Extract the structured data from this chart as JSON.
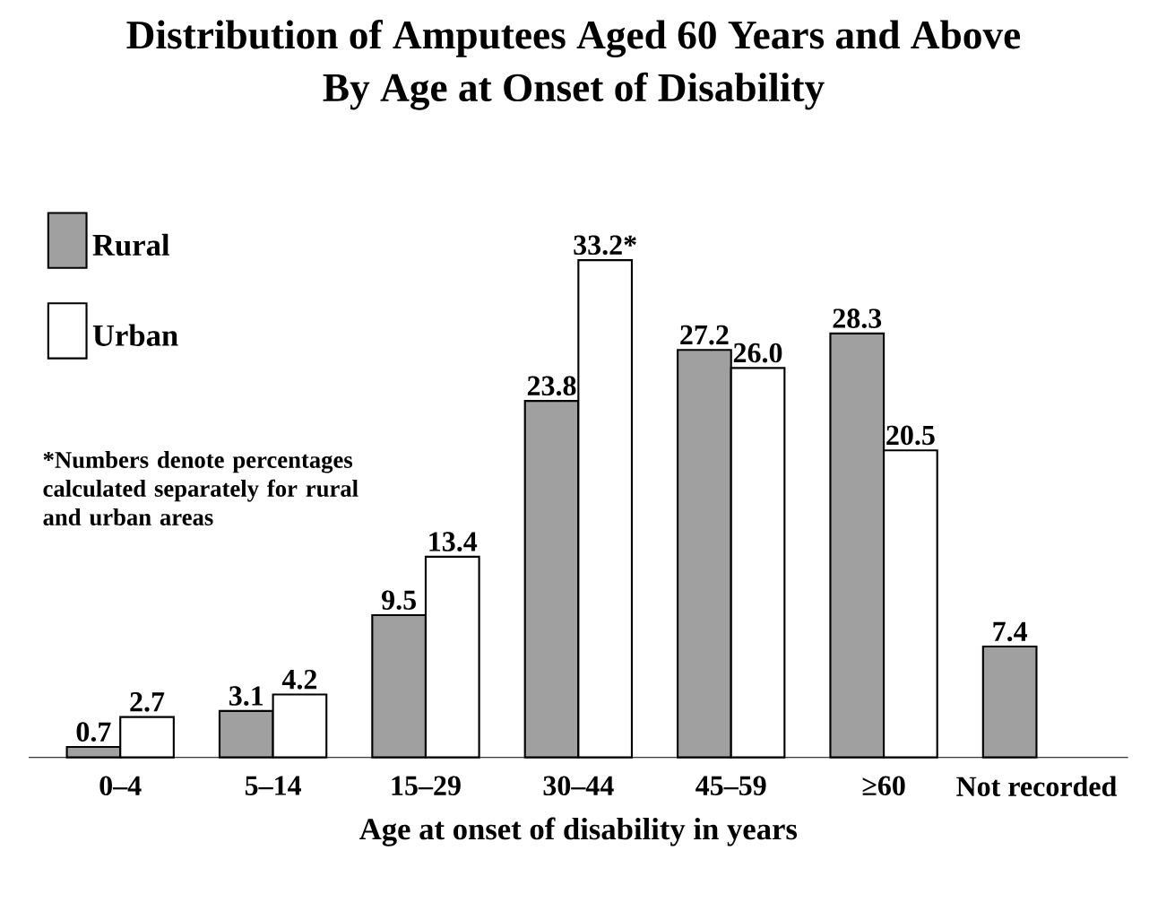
{
  "chart_data": {
    "type": "bar",
    "title": "Distribution of Amputees Aged 60 Years and Above",
    "subtitle": "By Age at Onset of Disability",
    "xlabel": "Age at onset of disability in years",
    "categories": [
      "0–4",
      "5–14",
      "15–29",
      "30–44",
      "45–59",
      "≥60",
      "Not recorded"
    ],
    "series": [
      {
        "name": "Rural",
        "color": "#a0a0a0",
        "values": [
          0.7,
          3.1,
          9.5,
          23.8,
          27.2,
          28.3,
          7.4
        ],
        "value_labels": [
          "0.7",
          "3.1",
          "9.5",
          "23.8",
          "27.2",
          "28.3",
          "7.4"
        ]
      },
      {
        "name": "Urban",
        "color": "#ffffff",
        "values": [
          2.7,
          4.2,
          13.4,
          33.2,
          26.0,
          20.5,
          null
        ],
        "value_labels": [
          "2.7",
          "4.2",
          "13.4",
          "33.2*",
          "26.0",
          "20.5",
          null
        ]
      }
    ],
    "annotations": [
      "*Numbers denote percentages calculated separately for rural and urban areas"
    ],
    "legend": "top left",
    "tick_labels": "x"
  }
}
